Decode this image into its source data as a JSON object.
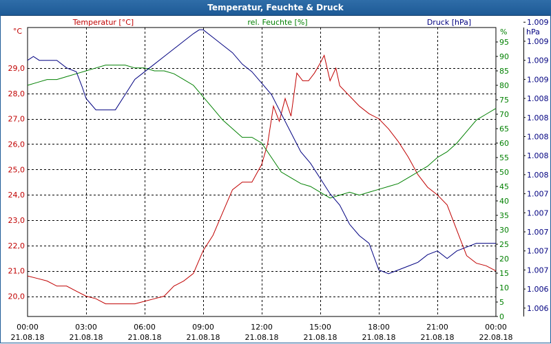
{
  "title": "Temperatur, Feuchte & Druck",
  "chart_data": {
    "type": "line",
    "title": "Temperatur, Feuchte & Druck",
    "x_ticks": [
      {
        "time": "00:00",
        "date": "21.08.18"
      },
      {
        "time": "03:00",
        "date": "21.08.18"
      },
      {
        "time": "06:00",
        "date": "21.08.18"
      },
      {
        "time": "09:00",
        "date": "21.08.18"
      },
      {
        "time": "12:00",
        "date": "21.08.18"
      },
      {
        "time": "15:00",
        "date": "21.08.18"
      },
      {
        "time": "18:00",
        "date": "21.08.18"
      },
      {
        "time": "21:00",
        "date": "21.08.18"
      },
      {
        "time": "00:00",
        "date": "22.08.18"
      }
    ],
    "xlim_hours": [
      0,
      24
    ],
    "grid": true,
    "axes": {
      "temperature": {
        "label": "Temperatur [°C]",
        "unit": "°C",
        "color": "#c00000",
        "ylim": [
          19.2,
          30.6
        ],
        "ticks": [
          "20,0",
          "21,0",
          "22,0",
          "23,0",
          "24,0",
          "25,0",
          "26,0",
          "27,0",
          "28,0",
          "29,0"
        ],
        "tick_values": [
          20,
          21,
          22,
          23,
          24,
          25,
          26,
          27,
          28,
          29
        ]
      },
      "humidity": {
        "label": "rel. Feuchte [%]",
        "unit": "%",
        "color": "#008000",
        "ylim": [
          0,
          100
        ],
        "ticks": [
          "0",
          "5",
          "10",
          "15",
          "20",
          "25",
          "30",
          "35",
          "40",
          "45",
          "50",
          "55",
          "60",
          "65",
          "70",
          "75",
          "80",
          "85",
          "90",
          "95"
        ],
        "tick_values": [
          0,
          5,
          10,
          15,
          20,
          25,
          30,
          35,
          40,
          45,
          50,
          55,
          60,
          65,
          70,
          75,
          80,
          85,
          90,
          95
        ]
      },
      "pressure": {
        "label": "Druck [hPa]",
        "unit": "hPa",
        "color": "#000080",
        "ylim": [
          1005.89,
          1009.68
        ],
        "ticks": [
          "1.006",
          "1.006",
          "1.007",
          "1.007",
          "1.007",
          "1.007",
          "1.007",
          "1.008",
          "1.008",
          "1.008",
          "1.008",
          "1.008",
          "1.009",
          "1.009",
          "1.009",
          "1.009"
        ],
        "tick_values": [
          1006.0,
          1006.25,
          1006.5,
          1006.75,
          1007.0,
          1007.25,
          1007.5,
          1007.75,
          1008.0,
          1008.25,
          1008.5,
          1008.75,
          1009.0,
          1009.25,
          1009.5,
          1009.75
        ]
      }
    },
    "series": [
      {
        "name": "Temperatur [°C]",
        "axis": "temperature",
        "color": "#c00000",
        "x": [
          0,
          0.5,
          1,
          1.5,
          2,
          2.5,
          3,
          3.5,
          4,
          4.5,
          5,
          5.5,
          6,
          6.5,
          7,
          7.5,
          8,
          8.5,
          9,
          9.5,
          10,
          10.5,
          11,
          11.5,
          12,
          12.3,
          12.6,
          12.9,
          13.2,
          13.5,
          13.8,
          14.1,
          14.4,
          14.7,
          15,
          15.2,
          15.5,
          15.8,
          16,
          16.5,
          17,
          17.5,
          18,
          18.5,
          19,
          19.5,
          20,
          20.5,
          21,
          21.5,
          22,
          22.5,
          23,
          23.5,
          24
        ],
        "values": [
          20.8,
          20.7,
          20.6,
          20.4,
          20.4,
          20.2,
          20.0,
          19.9,
          19.7,
          19.7,
          19.7,
          19.7,
          19.8,
          19.9,
          20.0,
          20.4,
          20.6,
          20.9,
          21.8,
          22.4,
          23.3,
          24.2,
          24.5,
          24.5,
          25.2,
          26.0,
          27.5,
          26.9,
          27.8,
          27.1,
          28.8,
          28.5,
          28.5,
          28.8,
          29.2,
          29.5,
          28.5,
          29.0,
          28.3,
          27.9,
          27.5,
          27.2,
          27.0,
          26.6,
          26.1,
          25.5,
          24.8,
          24.3,
          24.0,
          23.6,
          22.6,
          21.6,
          21.3,
          21.2,
          21.0
        ]
      },
      {
        "name": "rel. Feuchte [%]",
        "axis": "humidity",
        "color": "#008000",
        "x": [
          0,
          0.5,
          1,
          1.5,
          2,
          2.5,
          3,
          3.5,
          4,
          4.5,
          5,
          5.5,
          6,
          6.5,
          7,
          7.5,
          8,
          8.5,
          9,
          9.5,
          10,
          10.5,
          11,
          11.5,
          12,
          12.5,
          13,
          13.5,
          14,
          14.5,
          15,
          15.5,
          16,
          16.5,
          17,
          17.5,
          18,
          18.5,
          19,
          19.5,
          20,
          20.5,
          21,
          21.5,
          22,
          22.5,
          23,
          23.5,
          24
        ],
        "values": [
          80,
          81,
          82,
          82,
          83,
          84,
          85,
          86,
          87,
          87,
          87,
          86,
          86,
          85,
          85,
          84,
          82,
          80,
          76,
          72,
          68,
          65,
          62,
          62,
          60,
          55,
          50,
          48,
          46,
          45,
          43,
          41,
          42,
          43,
          42,
          43,
          44,
          45,
          46,
          48,
          50,
          52,
          55,
          57,
          60,
          64,
          68,
          70,
          72
        ]
      },
      {
        "name": "Druck [hPa]",
        "axis": "pressure",
        "color": "#000080",
        "x": [
          0,
          0.3,
          0.6,
          1.0,
          1.5,
          2,
          2.5,
          2.8,
          3,
          3.5,
          4,
          4.5,
          5,
          5.5,
          6,
          6.5,
          7,
          7.5,
          8,
          8.5,
          8.8,
          9,
          9.5,
          10,
          10.5,
          11,
          11.5,
          12,
          12.5,
          13,
          13.5,
          14,
          14.5,
          15,
          15.5,
          16,
          16.5,
          17,
          17.5,
          18,
          18.5,
          19,
          19.5,
          20,
          20.5,
          21,
          21.5,
          22,
          22.5,
          23,
          23.5,
          24
        ],
        "values": [
          1009.25,
          1009.3,
          1009.25,
          1009.25,
          1009.25,
          1009.15,
          1009.1,
          1008.9,
          1008.75,
          1008.6,
          1008.6,
          1008.6,
          1008.8,
          1009.0,
          1009.1,
          1009.2,
          1009.3,
          1009.4,
          1009.5,
          1009.6,
          1009.65,
          1009.65,
          1009.55,
          1009.45,
          1009.35,
          1009.2,
          1009.1,
          1008.95,
          1008.8,
          1008.55,
          1008.3,
          1008.05,
          1007.9,
          1007.7,
          1007.5,
          1007.35,
          1007.1,
          1006.95,
          1006.85,
          1006.5,
          1006.45,
          1006.5,
          1006.55,
          1006.6,
          1006.7,
          1006.75,
          1006.65,
          1006.75,
          1006.8,
          1006.85,
          1006.85,
          1006.85
        ]
      }
    ]
  }
}
